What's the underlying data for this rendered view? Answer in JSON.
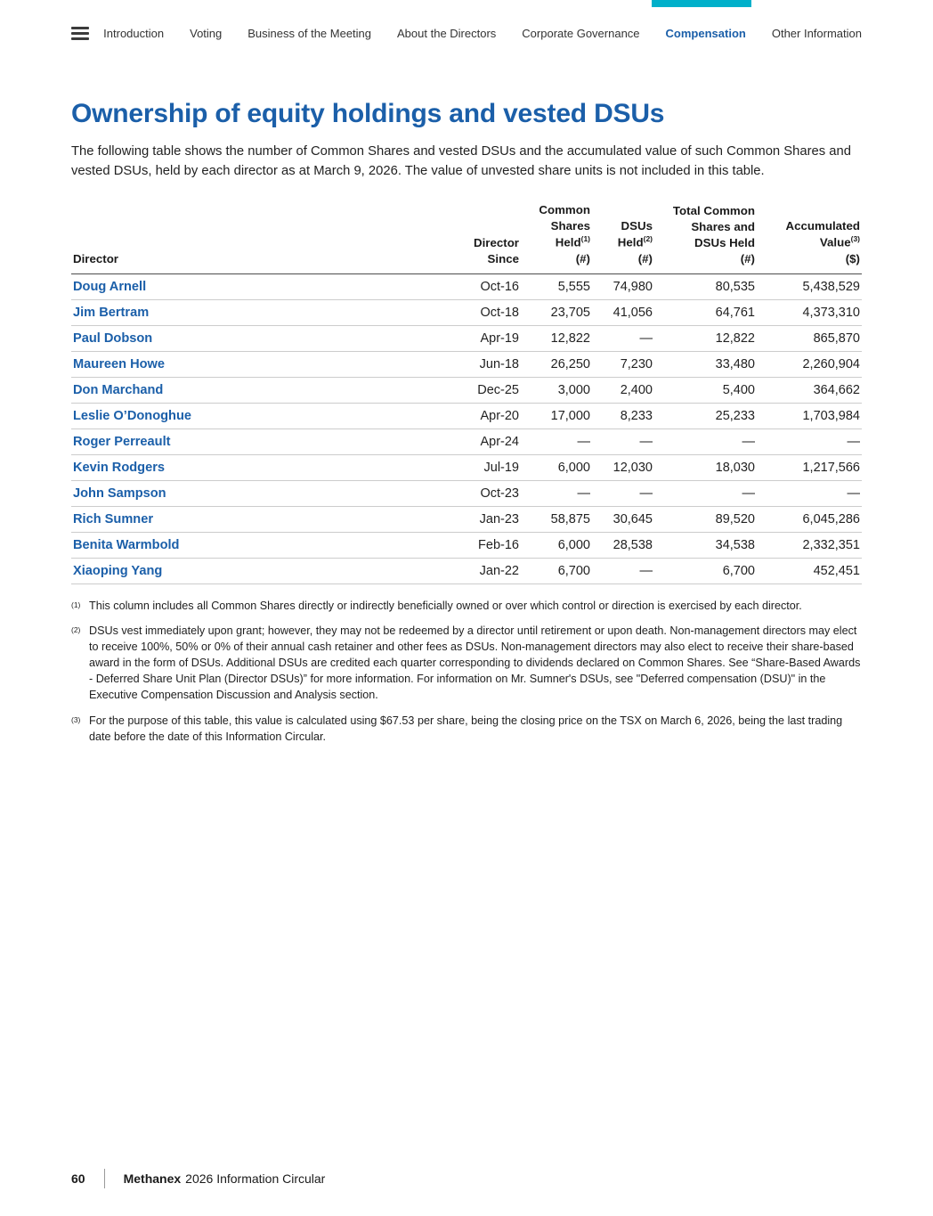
{
  "accent_color": "#00b0ca",
  "nav": {
    "items": [
      {
        "label": "Introduction",
        "active": false
      },
      {
        "label": "Voting",
        "active": false
      },
      {
        "label": "Business of the Meeting",
        "active": false
      },
      {
        "label": "About the Directors",
        "active": false
      },
      {
        "label": "Corporate Governance",
        "active": false
      },
      {
        "label": "Compensation",
        "active": true
      },
      {
        "label": "Other Information",
        "active": false
      }
    ]
  },
  "title": "Ownership of equity holdings and vested DSUs",
  "intro": "The following table shows the number of Common Shares and vested DSUs and the accumulated value of such Common Shares and vested DSUs, held by each director as at March 9, 2026. The value of unvested share units is not included in this table.",
  "table": {
    "columns": [
      {
        "key": "director",
        "lines": [
          "Director"
        ],
        "align": "left"
      },
      {
        "key": "director-since",
        "lines": [
          "Director",
          "Since"
        ],
        "align": "right"
      },
      {
        "key": "common-shares-held",
        "lines": [
          "Common",
          "Shares",
          "Held^(1)",
          "(#)"
        ],
        "align": "right"
      },
      {
        "key": "dsus-held",
        "lines": [
          "DSUs",
          "Held^(2)",
          "(#)"
        ],
        "align": "right"
      },
      {
        "key": "total-common-shares-and-dsus-held",
        "lines": [
          "Total Common",
          "Shares and",
          "DSUs Held",
          "(#)"
        ],
        "align": "right"
      },
      {
        "key": "accumulated-value",
        "lines": [
          "Accumulated",
          "Value^(3)",
          "($)"
        ],
        "align": "right"
      }
    ],
    "rows": [
      [
        "Doug Arnell",
        "Oct-16",
        "5,555",
        "74,980",
        "80,535",
        "5,438,529"
      ],
      [
        "Jim Bertram",
        "Oct-18",
        "23,705",
        "41,056",
        "64,761",
        "4,373,310"
      ],
      [
        "Paul Dobson",
        "Apr-19",
        "12,822",
        "—",
        "12,822",
        "865,870"
      ],
      [
        "Maureen Howe",
        "Jun-18",
        "26,250",
        "7,230",
        "33,480",
        "2,260,904"
      ],
      [
        "Don Marchand",
        "Dec-25",
        "3,000",
        "2,400",
        "5,400",
        "364,662"
      ],
      [
        "Leslie O’Donoghue",
        "Apr-20",
        "17,000",
        "8,233",
        "25,233",
        "1,703,984"
      ],
      [
        "Roger Perreault",
        "Apr-24",
        "—",
        "—",
        "—",
        "—"
      ],
      [
        "Kevin Rodgers",
        "Jul-19",
        "6,000",
        "12,030",
        "18,030",
        "1,217,566"
      ],
      [
        "John Sampson",
        "Oct-23",
        "—",
        "—",
        "—",
        "—"
      ],
      [
        "Rich Sumner",
        "Jan-23",
        "58,875",
        "30,645",
        "89,520",
        "6,045,286"
      ],
      [
        "Benita Warmbold",
        "Feb-16",
        "6,000",
        "28,538",
        "34,538",
        "2,332,351"
      ],
      [
        "Xiaoping Yang",
        "Jan-22",
        "6,700",
        "—",
        "6,700",
        "452,451"
      ]
    ]
  },
  "footnotes": [
    {
      "marker": "(1)",
      "text": "This column includes all Common Shares directly or indirectly beneficially owned or over which control or direction is exercised by each director."
    },
    {
      "marker": "(2)",
      "text": "DSUs vest immediately upon grant; however, they may not be redeemed by a director until retirement or upon death. Non-management directors may elect to receive 100%, 50% or 0% of their annual cash retainer and other fees as DSUs. Non-management directors may also elect to receive their share-based award in the form of DSUs. Additional DSUs are credited each quarter corresponding to dividends declared on Common Shares. See “Share-Based Awards - Deferred Share Unit Plan (Director DSUs)” for more information. For information on Mr. Sumner's DSUs,  see \"Deferred compensation (DSU)\" in the Executive Compensation Discussion and Analysis section."
    },
    {
      "marker": "(3)",
      "text": "For the purpose of this table, this value is calculated using $67.53 per share, being the closing price on the TSX on March 6, 2026, being the last trading date before the date of this Information Circular."
    }
  ],
  "footer": {
    "page_number": "60",
    "brand": "Methanex",
    "doc_title": "2026 Information Circular"
  }
}
